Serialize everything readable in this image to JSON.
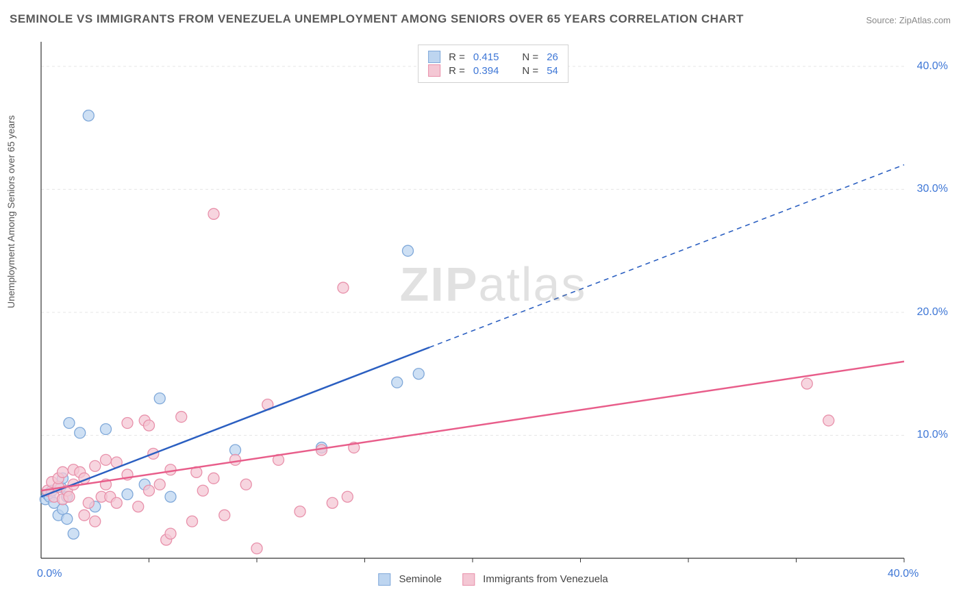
{
  "title": "SEMINOLE VS IMMIGRANTS FROM VENEZUELA UNEMPLOYMENT AMONG SENIORS OVER 65 YEARS CORRELATION CHART",
  "source": "Source: ZipAtlas.com",
  "ylabel": "Unemployment Among Seniors over 65 years",
  "watermark_a": "ZIP",
  "watermark_b": "atlas",
  "chart": {
    "type": "scatter",
    "xlim": [
      0,
      40
    ],
    "ylim": [
      0,
      42
    ],
    "xtick_step": 10,
    "ytick_step": 10,
    "xtick_labels": [
      "0.0%",
      "40.0%"
    ],
    "ytick_labels": [
      "10.0%",
      "20.0%",
      "30.0%",
      "40.0%"
    ],
    "grid_color": "#e5e5e5",
    "axis_color": "#333333",
    "background_color": "#ffffff",
    "series": [
      {
        "name": "Seminole",
        "color_fill": "#bdd5f0",
        "color_stroke": "#7fa8d9",
        "line_color": "#2b5fc1",
        "r_label": "R =",
        "r_value": "0.415",
        "n_label": "N =",
        "n_value": "26",
        "marker_radius": 8,
        "trend": {
          "x1": 0,
          "y1": 5.0,
          "x2": 40,
          "y2": 32.0,
          "solid_until_x": 18
        },
        "points": [
          [
            0.2,
            4.8
          ],
          [
            0.3,
            5.2
          ],
          [
            0.4,
            5.0
          ],
          [
            0.5,
            5.5
          ],
          [
            0.6,
            4.5
          ],
          [
            0.8,
            3.5
          ],
          [
            0.9,
            5.8
          ],
          [
            1.0,
            4.0
          ],
          [
            1.0,
            6.5
          ],
          [
            1.2,
            3.2
          ],
          [
            1.2,
            5.0
          ],
          [
            1.3,
            11.0
          ],
          [
            1.5,
            2.0
          ],
          [
            1.8,
            10.2
          ],
          [
            2.2,
            36.0
          ],
          [
            2.5,
            4.2
          ],
          [
            3.0,
            10.5
          ],
          [
            4.0,
            5.2
          ],
          [
            4.8,
            6.0
          ],
          [
            5.5,
            13.0
          ],
          [
            6.0,
            5.0
          ],
          [
            9.0,
            8.8
          ],
          [
            13.0,
            9.0
          ],
          [
            16.5,
            14.3
          ],
          [
            17.5,
            15.0
          ],
          [
            17.0,
            25.0
          ]
        ]
      },
      {
        "name": "Immigrants from Venezuela",
        "color_fill": "#f4c7d4",
        "color_stroke": "#e890aa",
        "line_color": "#e85d8a",
        "r_label": "R =",
        "r_value": "0.394",
        "n_label": "N =",
        "n_value": "54",
        "marker_radius": 8,
        "trend": {
          "x1": 0,
          "y1": 5.5,
          "x2": 40,
          "y2": 16.0,
          "solid_until_x": 40
        },
        "points": [
          [
            0.3,
            5.5
          ],
          [
            0.5,
            6.2
          ],
          [
            0.6,
            5.0
          ],
          [
            0.8,
            5.8
          ],
          [
            0.8,
            6.5
          ],
          [
            1.0,
            4.8
          ],
          [
            1.0,
            7.0
          ],
          [
            1.2,
            5.5
          ],
          [
            1.3,
            5.0
          ],
          [
            1.5,
            6.0
          ],
          [
            1.5,
            7.2
          ],
          [
            1.8,
            7.0
          ],
          [
            2.0,
            3.5
          ],
          [
            2.0,
            6.5
          ],
          [
            2.2,
            4.5
          ],
          [
            2.5,
            3.0
          ],
          [
            2.5,
            7.5
          ],
          [
            2.8,
            5.0
          ],
          [
            3.0,
            6.0
          ],
          [
            3.0,
            8.0
          ],
          [
            3.2,
            5.0
          ],
          [
            3.5,
            4.5
          ],
          [
            3.5,
            7.8
          ],
          [
            4.0,
            11.0
          ],
          [
            4.0,
            6.8
          ],
          [
            4.5,
            4.2
          ],
          [
            4.8,
            11.2
          ],
          [
            5.0,
            10.8
          ],
          [
            5.0,
            5.5
          ],
          [
            5.2,
            8.5
          ],
          [
            5.5,
            6.0
          ],
          [
            5.8,
            1.5
          ],
          [
            6.0,
            2.0
          ],
          [
            6.0,
            7.2
          ],
          [
            6.5,
            11.5
          ],
          [
            7.0,
            3.0
          ],
          [
            7.2,
            7.0
          ],
          [
            7.5,
            5.5
          ],
          [
            8.0,
            6.5
          ],
          [
            8.0,
            28.0
          ],
          [
            8.5,
            3.5
          ],
          [
            9.0,
            8.0
          ],
          [
            9.5,
            6.0
          ],
          [
            10.0,
            0.8
          ],
          [
            10.5,
            12.5
          ],
          [
            11.0,
            8.0
          ],
          [
            12.0,
            3.8
          ],
          [
            13.0,
            8.8
          ],
          [
            13.5,
            4.5
          ],
          [
            14.0,
            22.0
          ],
          [
            14.2,
            5.0
          ],
          [
            14.5,
            9.0
          ],
          [
            35.5,
            14.2
          ],
          [
            36.5,
            11.2
          ]
        ]
      }
    ]
  },
  "legend_bottom": {
    "items": [
      "Seminole",
      "Immigrants from Venezuela"
    ]
  }
}
